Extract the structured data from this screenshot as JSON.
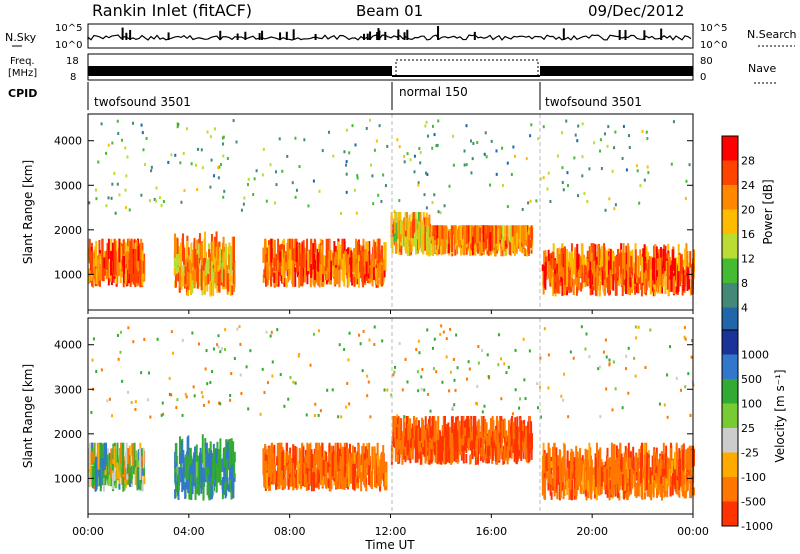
{
  "header": {
    "title": "Rankin Inlet (fitACF)",
    "beam": "Beam 01",
    "date": "09/Dec/2012"
  },
  "noise_panel": {
    "left_label": "N.Sky",
    "right_label": "N.Search",
    "left_ticks": [
      "10^5",
      "10^0"
    ],
    "right_ticks": [
      "10^5",
      "10^0"
    ]
  },
  "freq_panel": {
    "left_label_line1": "Freq.",
    "left_label_line2": "[MHz]",
    "left_ticks": [
      "18",
      "8"
    ],
    "right_label": "Nave",
    "right_ticks": [
      "80",
      "0"
    ]
  },
  "cpid": {
    "label": "CPID",
    "segments": [
      {
        "name": "twofsound 3501",
        "start_hour": 0
      },
      {
        "name": "normal 150",
        "start_hour": 12
      },
      {
        "name": "twofsound 3501",
        "start_hour": 18
      }
    ]
  },
  "x_axis": {
    "title": "Time UT",
    "ticks": [
      "00:00",
      "04:00",
      "08:00",
      "12:00",
      "16:00",
      "20:00",
      "00:00"
    ],
    "range_hours": [
      0,
      24
    ]
  },
  "panels": {
    "power": {
      "ylabel": "Slant Range [km]",
      "yticks": [
        "4000",
        "3000",
        "2000",
        "1000"
      ],
      "colorbar_label": "Power [dB]",
      "colorbar_ticks": [
        "28",
        "24",
        "20",
        "16",
        "12",
        "8",
        "4"
      ],
      "colors": [
        "#ff0000",
        "#ff4400",
        "#ff8800",
        "#ffbb00",
        "#bbdd33",
        "#44bb33",
        "#448877",
        "#2266aa",
        "#0000ff"
      ]
    },
    "velocity": {
      "ylabel": "Slant Range [km]",
      "yticks": [
        "4000",
        "3000",
        "2000",
        "1000"
      ],
      "colorbar_label": "Velocity [m s⁻¹]",
      "colorbar_ticks": [
        "1000",
        "500",
        "100",
        "25",
        "-25",
        "-100",
        "-500",
        "-1000"
      ],
      "colors": [
        "#1a3399",
        "#3377cc",
        "#33aa33",
        "#77cc33",
        "#cccccc",
        "#ffaa00",
        "#ff7700",
        "#ff3300",
        "#ee0000"
      ]
    }
  },
  "chart_data": [
    {
      "type": "heatmap",
      "title": "Power",
      "xlabel": "Time UT",
      "ylabel": "Slant Range [km]",
      "xlim": [
        0,
        24
      ],
      "ylim": [
        200,
        4600
      ],
      "colorbar": "Power [dB]",
      "colorbar_range": [
        0,
        32
      ],
      "scatter_regions": [
        {
          "t_start": 0.0,
          "t_end": 2.2,
          "r_low": 700,
          "r_high": 1800,
          "level_db": 26
        },
        {
          "t_start": 3.4,
          "t_end": 5.8,
          "r_low": 500,
          "r_high": 2000,
          "level_db": 22
        },
        {
          "t_start": 6.9,
          "t_end": 11.8,
          "r_low": 700,
          "r_high": 1800,
          "level_db": 26
        },
        {
          "t_start": 12.0,
          "t_end": 13.6,
          "r_low": 1400,
          "r_high": 2400,
          "level_db": 20
        },
        {
          "t_start": 13.6,
          "t_end": 17.6,
          "r_low": 1400,
          "r_high": 2100,
          "level_db": 24
        },
        {
          "t_start": 18.0,
          "t_end": 24.0,
          "r_low": 500,
          "r_high": 1700,
          "level_db": 26
        }
      ]
    },
    {
      "type": "heatmap",
      "title": "Velocity",
      "xlabel": "Time UT",
      "ylabel": "Slant Range [km]",
      "xlim": [
        0,
        24
      ],
      "ylim": [
        200,
        4600
      ],
      "colorbar": "Velocity [m s⁻¹]",
      "colorbar_range": [
        -1000,
        1000
      ],
      "scatter_regions": [
        {
          "t_start": 0.0,
          "t_end": 2.2,
          "r_low": 700,
          "r_high": 1800,
          "level_ms": 100
        },
        {
          "t_start": 3.4,
          "t_end": 5.8,
          "r_low": 500,
          "r_high": 2000,
          "level_ms": 300
        },
        {
          "t_start": 6.9,
          "t_end": 11.8,
          "r_low": 700,
          "r_high": 1800,
          "level_ms": -300
        },
        {
          "t_start": 12.0,
          "t_end": 17.6,
          "r_low": 1300,
          "r_high": 2400,
          "level_ms": -400
        },
        {
          "t_start": 18.0,
          "t_end": 24.0,
          "r_low": 500,
          "r_high": 1800,
          "level_ms": -300
        }
      ]
    }
  ]
}
